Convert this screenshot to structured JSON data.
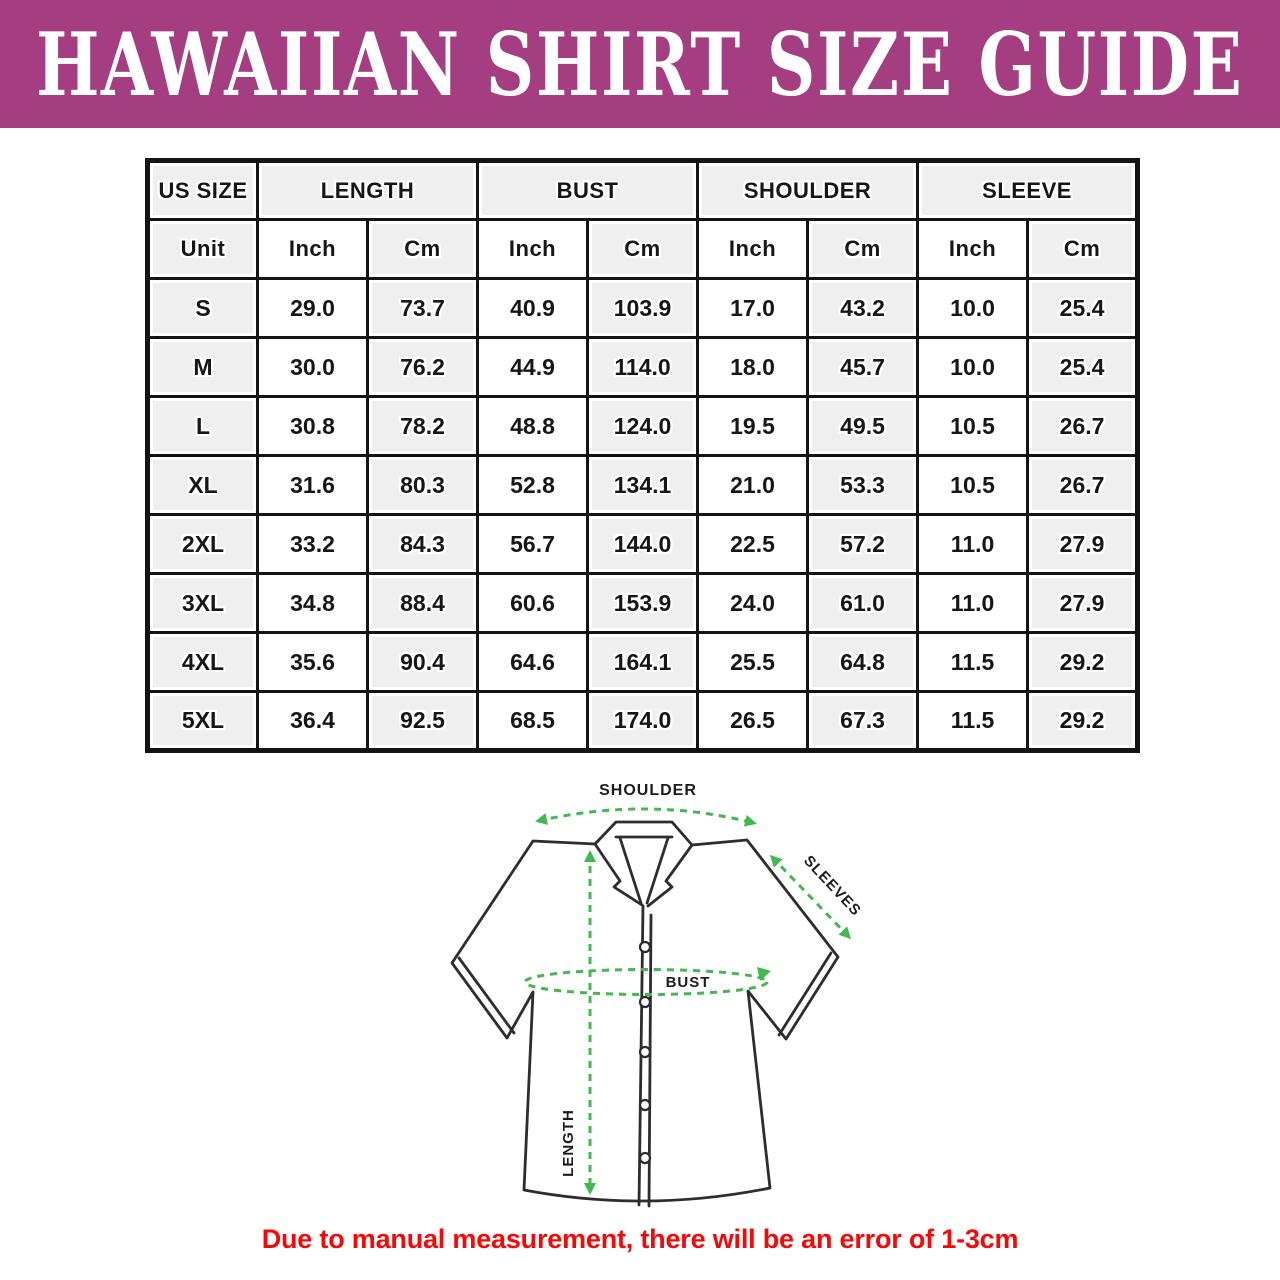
{
  "page": {
    "title": "HAWAIIAN SHIRT SIZE GUIDE",
    "footnote": "Due to manual measurement, there will be an error of 1-3cm"
  },
  "colors": {
    "banner_background": "#A53D81",
    "banner_text": "#FFFFFF",
    "table_border": "#141414",
    "cell_shade": "#EFEFEF",
    "cell_white": "#FFFFFF",
    "table_text": "#161616",
    "measurement_arrow_green": "#41B94E",
    "shirt_outline": "#2D2D2D",
    "footnote_red": "#F90606"
  },
  "size_table": {
    "group_headers": [
      "US SIZE",
      "LENGTH",
      "BUST",
      "SHOULDER",
      "SLEEVE"
    ],
    "group_spans": [
      1,
      2,
      2,
      2,
      2
    ],
    "unit_row": [
      "Unit",
      "Inch",
      "Cm",
      "Inch",
      "Cm",
      "Inch",
      "Cm",
      "Inch",
      "Cm"
    ],
    "rows": [
      {
        "size": "S",
        "values": [
          "29.0",
          "73.7",
          "40.9",
          "103.9",
          "17.0",
          "43.2",
          "10.0",
          "25.4"
        ]
      },
      {
        "size": "M",
        "values": [
          "30.0",
          "76.2",
          "44.9",
          "114.0",
          "18.0",
          "45.7",
          "10.0",
          "25.4"
        ]
      },
      {
        "size": "L",
        "values": [
          "30.8",
          "78.2",
          "48.8",
          "124.0",
          "19.5",
          "49.5",
          "10.5",
          "26.7"
        ]
      },
      {
        "size": "XL",
        "values": [
          "31.6",
          "80.3",
          "52.8",
          "134.1",
          "21.0",
          "53.3",
          "10.5",
          "26.7"
        ]
      },
      {
        "size": "2XL",
        "values": [
          "33.2",
          "84.3",
          "56.7",
          "144.0",
          "22.5",
          "57.2",
          "11.0",
          "27.9"
        ]
      },
      {
        "size": "3XL",
        "values": [
          "34.8",
          "88.4",
          "60.6",
          "153.9",
          "24.0",
          "61.0",
          "11.0",
          "27.9"
        ]
      },
      {
        "size": "4XL",
        "values": [
          "35.6",
          "90.4",
          "64.6",
          "164.1",
          "25.5",
          "64.8",
          "11.5",
          "29.2"
        ]
      },
      {
        "size": "5XL",
        "values": [
          "36.4",
          "92.5",
          "68.5",
          "174.0",
          "26.5",
          "67.3",
          "11.5",
          "29.2"
        ]
      }
    ]
  },
  "diagram": {
    "labels": {
      "shoulder": "SHOULDER",
      "sleeves": "SLEEVES",
      "bust": "BUST",
      "length": "LENGTH"
    }
  }
}
